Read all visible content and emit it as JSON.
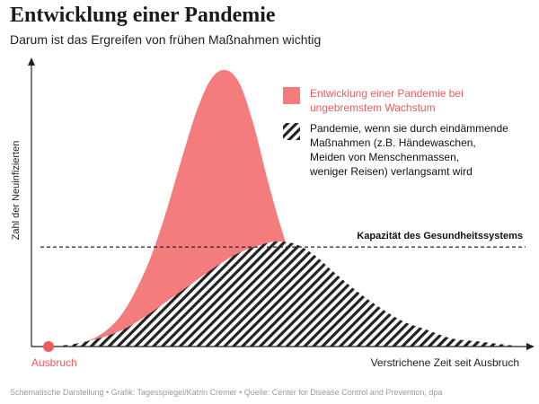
{
  "title": "Entwicklung einer Pandemie",
  "subtitle": "Darum ist das Ergreifen von frühen Maßnahmen wichtig",
  "footer": "Schematische Darstellung • Grafik: Tagesspiegel/Katrin Cremer • Quelle: Center for Disease Control and Prevention, dpa",
  "colors": {
    "unmitigated": "#f47c7c",
    "mitigated_stripe": "#222222",
    "outbreak_marker": "#ef5a5a",
    "capacity_line": "#222222"
  },
  "chart_data": {
    "type": "area",
    "xlabel": "Verstrichene Zeit seit Ausbruch",
    "ylabel": "Zahl der Neuinfizierten",
    "origin_label": "Ausbruch",
    "grid": false,
    "legend_position": "top-right",
    "x_range": [
      0,
      100
    ],
    "y_range": [
      0,
      100
    ],
    "capacity": {
      "label": "Kapazität des Gesundheitssystems",
      "value": 36
    },
    "series": [
      {
        "name": "Entwicklung einer Pandemie bei ungebremstem Wachstum",
        "style": "solid",
        "x": [
          0,
          5,
          10,
          15,
          20,
          24,
          28,
          31,
          34,
          37,
          40,
          43,
          46,
          49,
          52,
          56,
          60,
          65,
          70
        ],
        "values": [
          0,
          1,
          4,
          12,
          28,
          47,
          70,
          86,
          97,
          100,
          95,
          80,
          60,
          42,
          27,
          15,
          7,
          2,
          0
        ]
      },
      {
        "name": "Pandemie, wenn sie durch eindämmende Maßnahmen (z.B. Händewaschen, Meiden von Menschenmassen, weniger Reisen) verlangsamt wird",
        "style": "hatched",
        "x": [
          0,
          5,
          10,
          15,
          20,
          25,
          30,
          35,
          40,
          45,
          48,
          52,
          56,
          60,
          65,
          70,
          75,
          80,
          85,
          90,
          95,
          100
        ],
        "values": [
          0,
          1,
          3,
          6,
          11,
          17,
          23,
          29,
          34,
          37,
          38,
          37,
          33,
          27,
          20,
          14,
          9,
          6,
          3,
          2,
          1,
          0
        ]
      }
    ]
  }
}
